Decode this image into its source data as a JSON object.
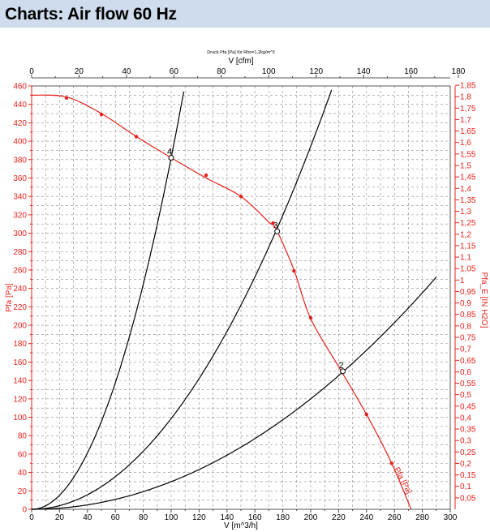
{
  "page": {
    "title": "Charts: Air flow 60 Hz"
  },
  "chart_data": {
    "type": "line",
    "title": "Druck Pfa [Pa] für Rho=1,2kg/m^3",
    "xlabel": "V [m^3/h]",
    "x2label": "V [cfm]",
    "ylabel": "Pfa [Pa]",
    "y2label": "Pfa_E [IN H2O]",
    "xlim": [
      0,
      300
    ],
    "ylim": [
      0,
      460
    ],
    "x_ticks": [
      "0",
      "20",
      "40",
      "60",
      "80",
      "100",
      "120",
      "140",
      "160",
      "180",
      "200",
      "220",
      "240",
      "260",
      "280",
      "300"
    ],
    "y_ticks": [
      "0",
      "20",
      "40",
      "60",
      "80",
      "100",
      "120",
      "140",
      "160",
      "180",
      "200",
      "220",
      "240",
      "260",
      "280",
      "300",
      "320",
      "340",
      "360",
      "380",
      "400",
      "420",
      "440",
      "460"
    ],
    "x2_ticks": [
      "0",
      "20",
      "40",
      "60",
      "80",
      "100",
      "120",
      "140",
      "160",
      "180"
    ],
    "y2_ticks": [
      "0,05",
      "0,1",
      "0,15",
      "0,2",
      "0,25",
      "0,3",
      "0,35",
      "0,4",
      "0,45",
      "0,5",
      "0,55",
      "0,6",
      "0,65",
      "0,7",
      "0,75",
      "0,8",
      "0,85",
      "0,9",
      "0,95",
      "1",
      "1,05",
      "1,1",
      "1,15",
      "1,2",
      "1,25",
      "1,3",
      "1,35",
      "1,4",
      "1,45",
      "1,5",
      "1,55",
      "1,6",
      "1,65",
      "1,7",
      "1,75",
      "1,8",
      "1,85"
    ],
    "fan_curve": {
      "name": "Pfa [Pa]",
      "color": "#e8201a",
      "x": [
        0,
        25,
        50,
        75,
        100,
        125,
        150,
        170,
        175,
        188,
        200,
        220,
        240,
        258,
        272
      ],
      "y": [
        450,
        448,
        430,
        405,
        382,
        360,
        340,
        312,
        305,
        260,
        207,
        155,
        103,
        50,
        0
      ],
      "markers_x": [
        25,
        50,
        75,
        125,
        150,
        173,
        188,
        200,
        240,
        258
      ],
      "markers_y": [
        447,
        429,
        405,
        363,
        340,
        311,
        259,
        208,
        103,
        50
      ]
    },
    "system_curves": [
      {
        "name": "4",
        "color": "#000000",
        "k": 0.0382,
        "xmax": 110
      },
      {
        "name": "3",
        "color": "#000000",
        "k": 0.00986,
        "xmax": 215
      },
      {
        "name": "2",
        "color": "#000000",
        "k": 0.003,
        "xmax": 290
      }
    ],
    "operating_points": [
      {
        "label": "4",
        "x": 100,
        "y": 382
      },
      {
        "label": "3",
        "x": 176,
        "y": 302
      },
      {
        "label": "2",
        "x": 223,
        "y": 150
      }
    ],
    "curve_label": "Pfa [Pa]"
  }
}
